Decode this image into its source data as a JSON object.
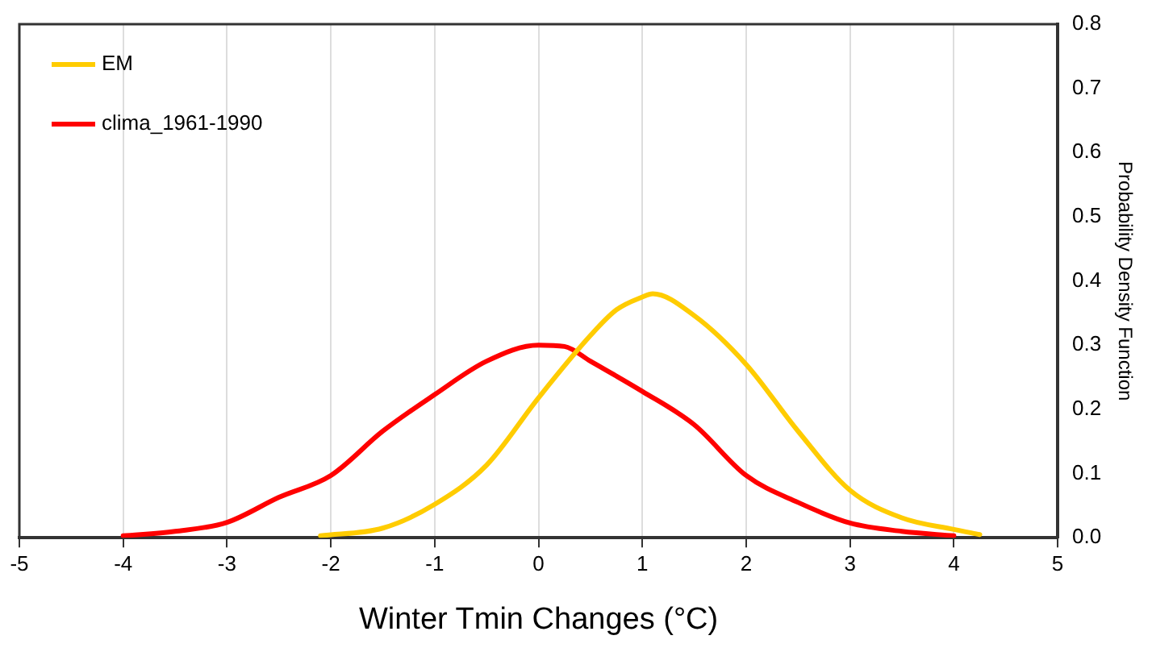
{
  "chart_data": {
    "type": "line",
    "xlabel": "Winter Tmin Changes (°C)",
    "y2label": "Probability Density Function",
    "xlim": [
      -5,
      5
    ],
    "xticks": [
      -5,
      -4,
      -3,
      -2,
      -1,
      0,
      1,
      2,
      3,
      4,
      5
    ],
    "y2lim": [
      0,
      0.8
    ],
    "y2ticks": [
      {
        "value": 0,
        "label": "0.0"
      },
      0.1,
      0.2,
      0.3,
      0.4,
      0.5,
      0.6,
      0.7,
      0.8
    ],
    "grid": "x",
    "legend": "top left",
    "marker": "none",
    "line_style": "solid",
    "series": [
      {
        "name": "EM",
        "color": "#ffcc00",
        "axis": "y2",
        "x": [
          -2.1,
          -1.5,
          -1,
          -0.5,
          0,
          0.5,
          0.75,
          1,
          1.1,
          1.5,
          2,
          2.5,
          3,
          3.5,
          4,
          4.25
        ],
        "values": [
          0.003,
          0.015,
          0.052,
          0.113,
          0.218,
          0.315,
          0.355,
          0.375,
          0.38,
          0.346,
          0.27,
          0.166,
          0.074,
          0.031,
          0.013,
          0.005
        ]
      },
      {
        "name": "clima_1961-1990",
        "color": "#ff0000",
        "axis": "y2",
        "x": [
          -4,
          -3.5,
          -3,
          -2.5,
          -2,
          -1.5,
          -1,
          -0.5,
          0,
          0.25,
          0.5,
          1,
          1.5,
          2,
          2.5,
          3,
          3.5,
          4
        ],
        "values": [
          0.003,
          0.01,
          0.024,
          0.063,
          0.097,
          0.166,
          0.223,
          0.275,
          0.3,
          0.298,
          0.275,
          0.228,
          0.176,
          0.097,
          0.055,
          0.023,
          0.01,
          0.003
        ]
      }
    ]
  }
}
